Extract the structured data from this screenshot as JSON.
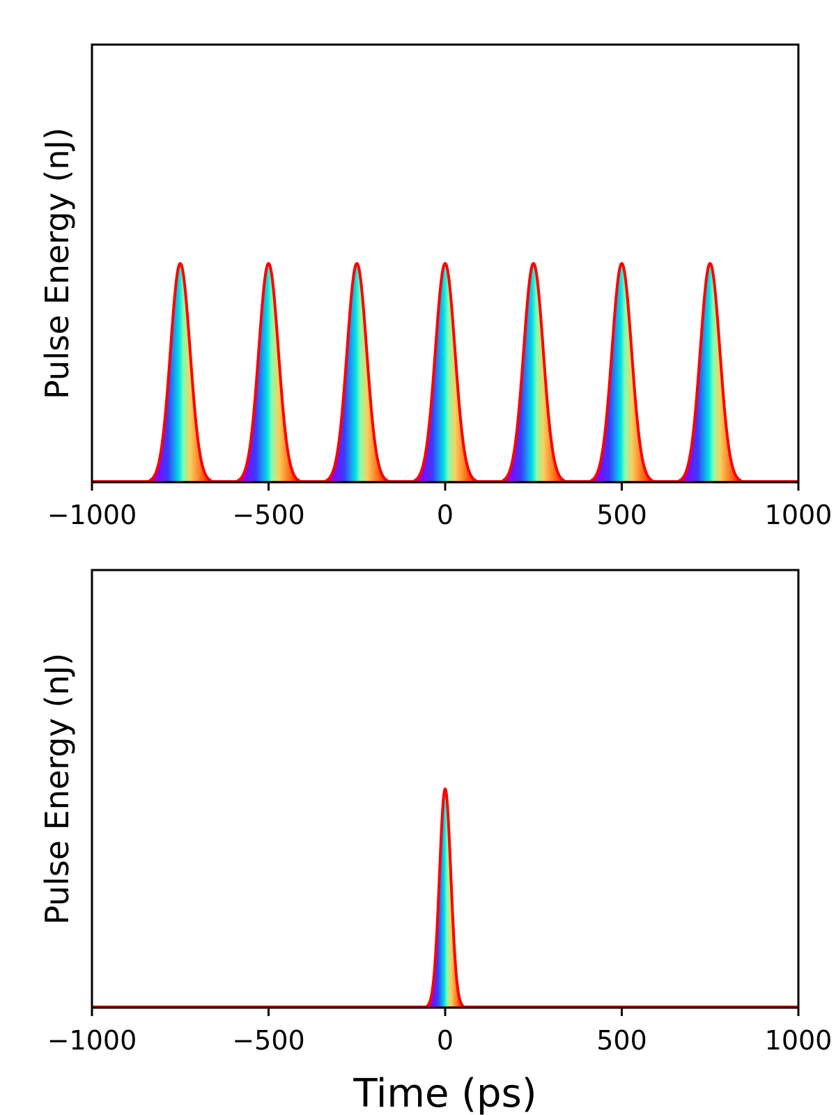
{
  "chart_data": [
    {
      "type": "area",
      "xlabel": "",
      "ylabel": "Pulse Energy (nJ)",
      "xlim": [
        -1000,
        1000
      ],
      "ylim": [
        0,
        1.0
      ],
      "x_ticks": [
        -1000,
        -500,
        0,
        500,
        1000
      ],
      "x_tick_labels": [
        "−1000",
        "−500",
        "0",
        "500",
        "1000"
      ],
      "y_ticks": [],
      "grid": false,
      "legend": "none",
      "line_color": "#ff0000",
      "fill": "rainbow gradient (violet → blue → cyan → yellow → orange → red) across each pulse",
      "pulses": {
        "centers": [
          -750,
          -500,
          -250,
          0,
          250,
          500,
          750
        ],
        "peak": 0.5,
        "fwhm": 65
      }
    },
    {
      "type": "area",
      "xlabel": "Time (ps)",
      "ylabel": "Pulse Energy (nJ)",
      "xlim": [
        -1000,
        1000
      ],
      "ylim": [
        0,
        1.0
      ],
      "x_ticks": [
        -1000,
        -500,
        0,
        500,
        1000
      ],
      "x_tick_labels": [
        "−1000",
        "−500",
        "0",
        "500",
        "1000"
      ],
      "y_ticks": [],
      "grid": false,
      "legend": "none",
      "line_color": "#ff0000",
      "fill": "rainbow gradient (violet → blue → cyan → yellow → orange → red) across the pulse",
      "pulses": {
        "centers": [
          0
        ],
        "peak": 0.5,
        "fwhm": 38
      }
    }
  ]
}
